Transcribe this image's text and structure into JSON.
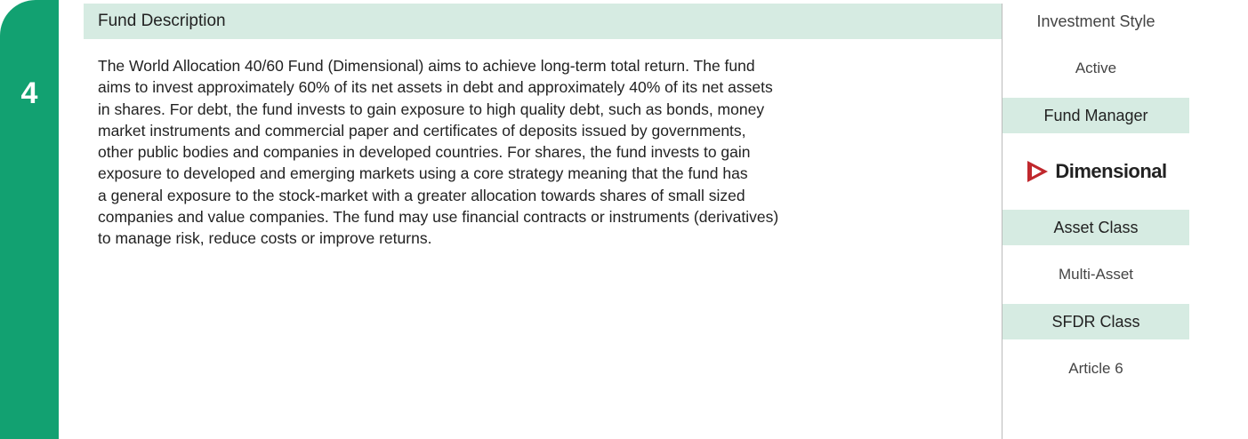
{
  "badge": "4",
  "description": {
    "title": "Fund Description",
    "text": [
      "The World Allocation 40/60 Fund (Dimensional) aims to achieve long-term total return. The fund",
      "aims to invest approximately 60% of its net assets in debt and approximately 40% of its net assets",
      "in shares. For debt, the fund invests to gain exposure to high quality debt, such as bonds, money",
      "market instruments and commercial paper and certificates of deposits issued by governments,",
      "other public bodies and companies in developed countries. For shares, the fund invests to gain",
      "exposure to developed and emerging markets using a core strategy meaning that the fund has",
      "a general exposure to the stock-market with a greater allocation towards shares of small sized",
      "companies and value companies. The fund may use financial contracts or instruments (derivatives)",
      "to manage risk, reduce costs or improve returns."
    ]
  },
  "sidebar": {
    "investment_style": {
      "label": "Investment Style",
      "value": "Active"
    },
    "fund_manager": {
      "label": "Fund Manager",
      "value": "Dimensional"
    },
    "asset_class": {
      "label": "Asset Class",
      "value": "Multi-Asset"
    },
    "sfdr_class": {
      "label": "SFDR Class",
      "value": "Article 6"
    }
  }
}
